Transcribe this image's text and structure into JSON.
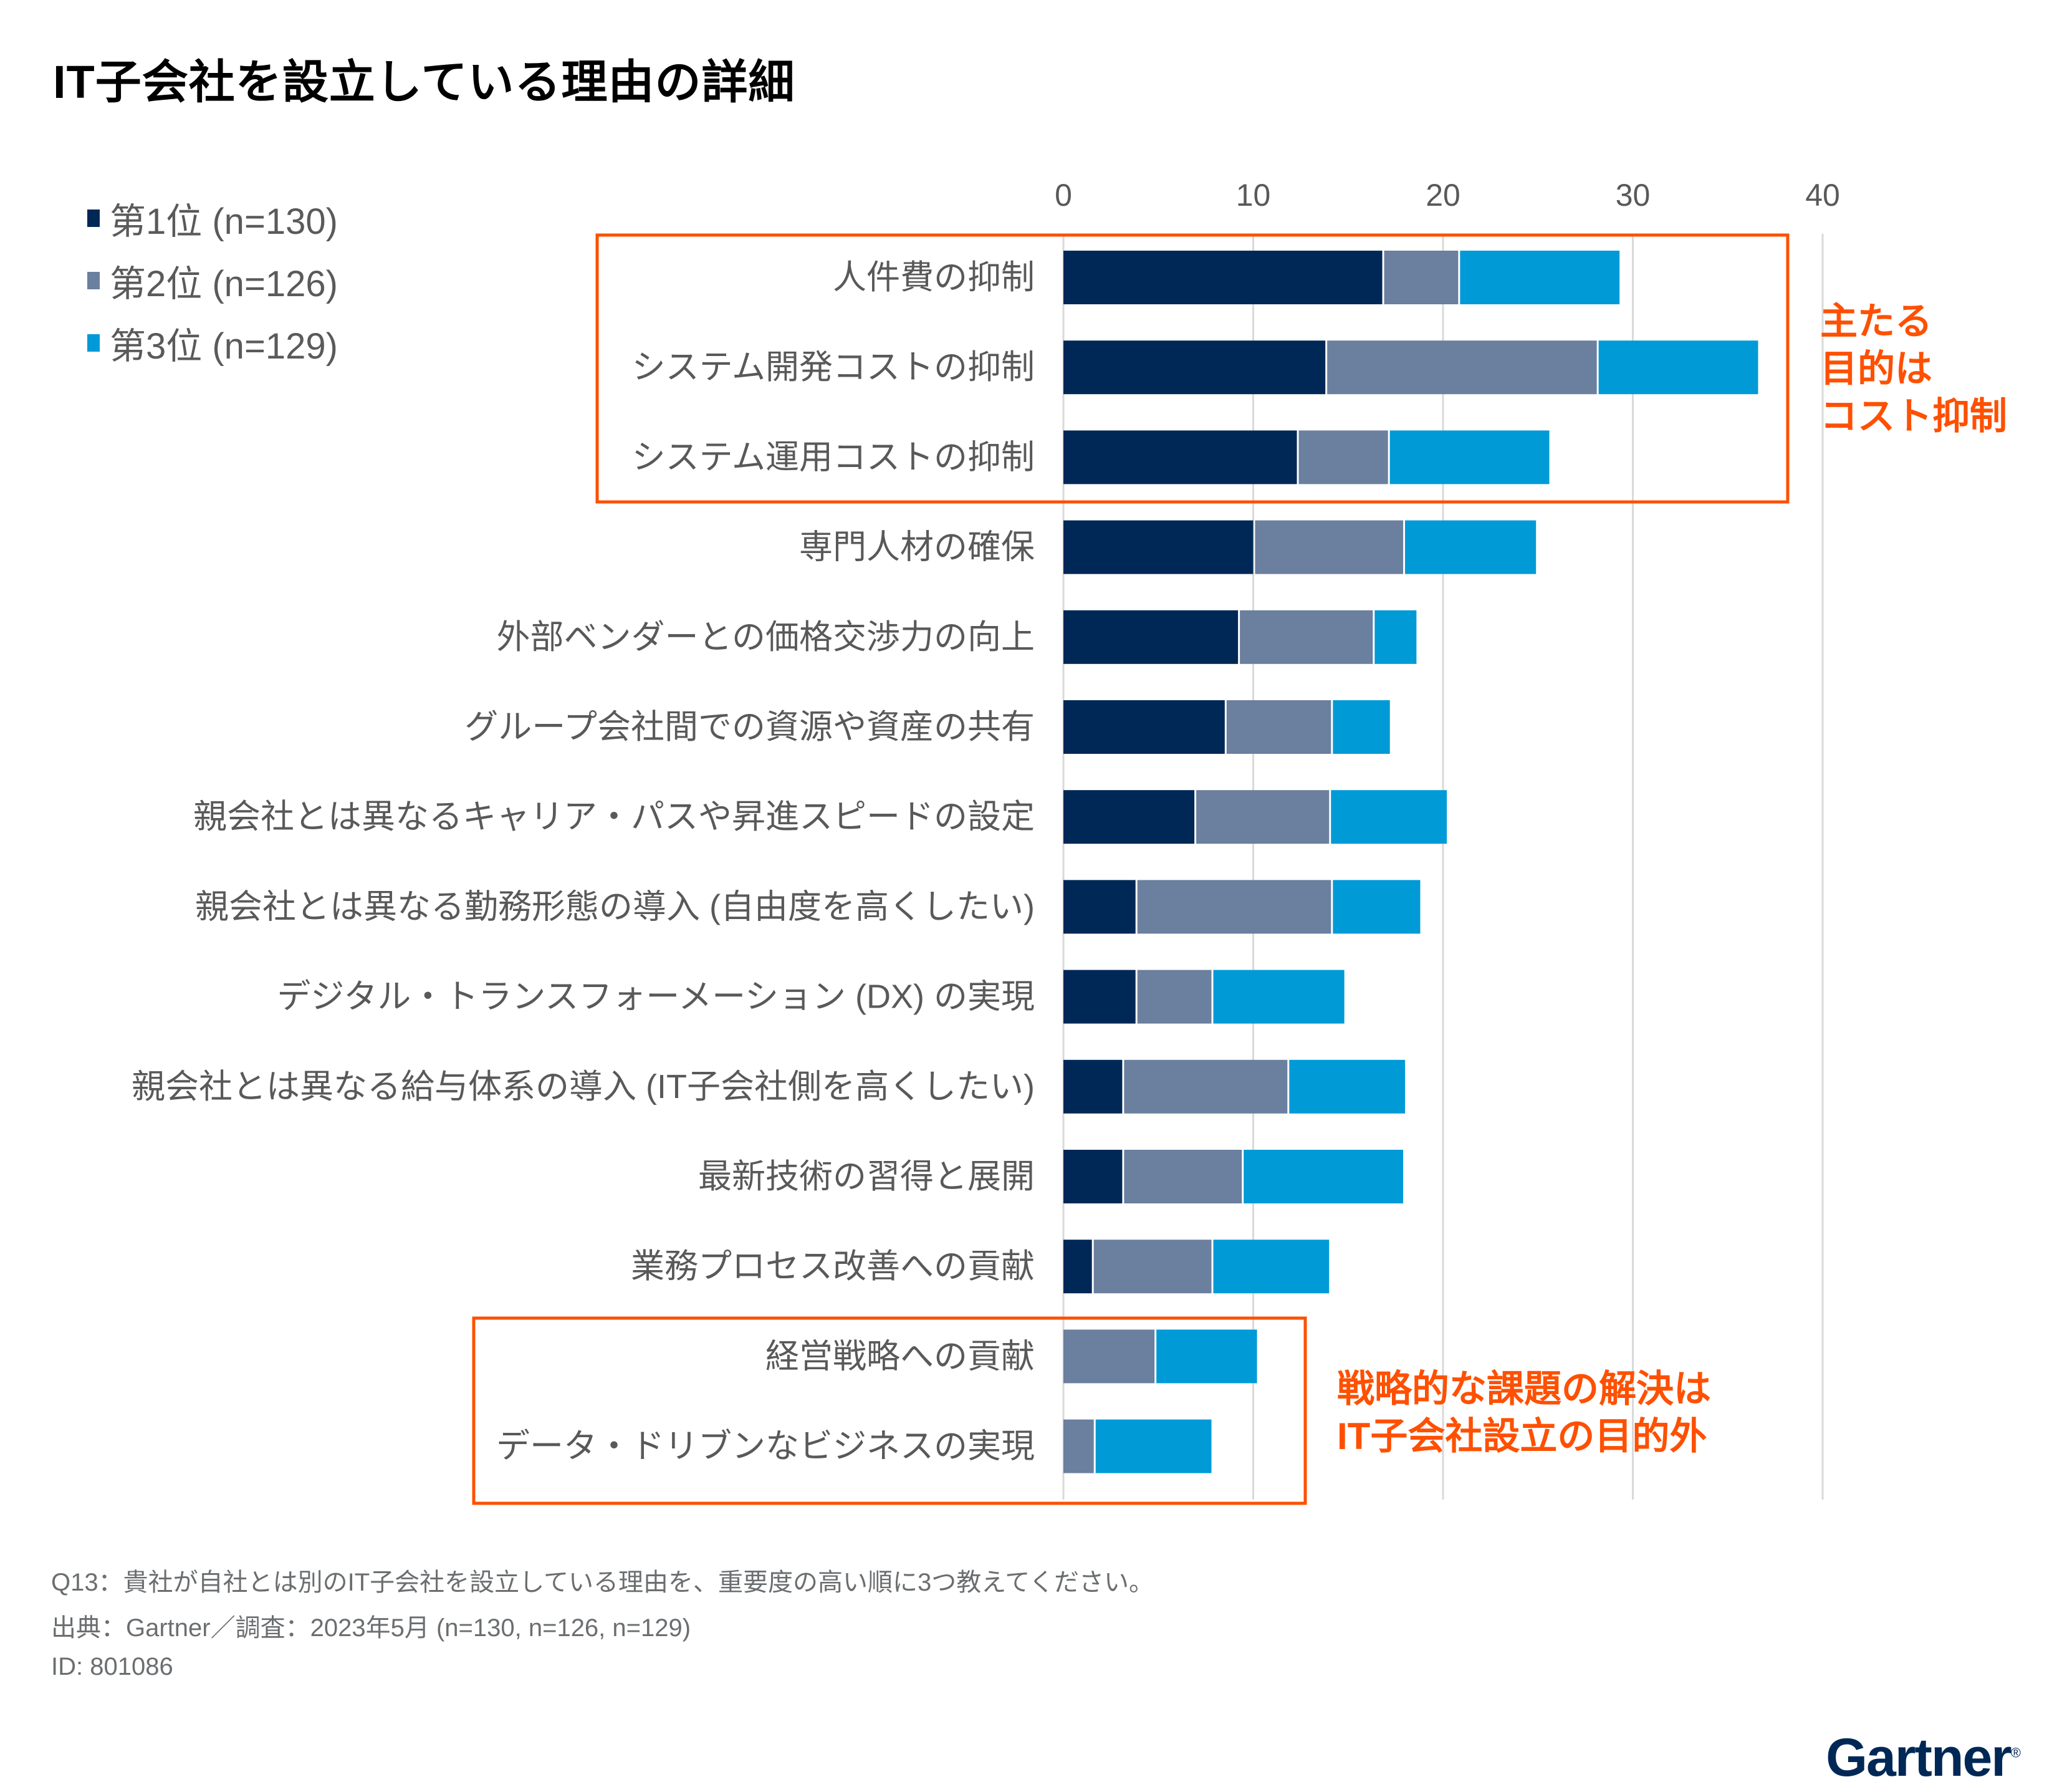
{
  "title": "IT子会社を設立している理由の詳細",
  "legend": [
    {
      "label": "第1位 (n=130)",
      "color": "#002856"
    },
    {
      "label": "第2位 (n=126)",
      "color": "#6b7f9e"
    },
    {
      "label": "第3位 (n=129)",
      "color": "#009ad7"
    }
  ],
  "callouts": {
    "cost": [
      "主たる",
      "目的は",
      "コスト抑制"
    ],
    "strategy": [
      "戦略的な課題の解決は",
      "IT子会社設立の目的外"
    ]
  },
  "footer": {
    "question": "Q13：貴社が自社とは別のIT子会社を設立している理由を、重要度の高い順に3つ教えてください。",
    "source": "出典：Gartner／調査：2023年5月 (n=130, n=126, n=129)",
    "id": "ID: 801086"
  },
  "logo": {
    "text": "Gartner",
    "mark": "®"
  },
  "colors": {
    "accent": "#fe5000",
    "grid": "#d9d9d9"
  },
  "chart_data": {
    "type": "bar",
    "orientation": "horizontal",
    "stacked": true,
    "title": "IT子会社を設立している理由の詳細",
    "xlabel": "",
    "ylabel": "",
    "xlim": [
      0,
      40
    ],
    "xticks": [
      0,
      10,
      20,
      30,
      40
    ],
    "grid": true,
    "legend_position": "top-left",
    "categories": [
      "人件費の抑制",
      "システム開発コストの抑制",
      "システム運用コストの抑制",
      "専門人材の確保",
      "外部ベンダーとの価格交渉力の向上",
      "グループ会社間での資源や資産の共有",
      "親会社とは異なるキャリア・パスや昇進スピードの設定",
      "親会社とは異なる勤務形態の導入 (自由度を高くしたい)",
      "デジタル・トランスフォーメーション (DX) の実現",
      "親会社とは異なる給与体系の導入 (IT子会社側を高くしたい)",
      "最新技術の習得と展開",
      "業務プロセス改善への貢献",
      "経営戦略への貢献",
      "データ・ドリブンなビジネスの実現"
    ],
    "series": [
      {
        "name": "第1位 (n=130)",
        "color": "#002856",
        "values": [
          16.8,
          13.8,
          12.3,
          10.0,
          9.2,
          8.5,
          6.9,
          3.8,
          3.8,
          3.1,
          3.1,
          1.5,
          0.0,
          0.0
        ]
      },
      {
        "name": "第2位 (n=126)",
        "color": "#6b7f9e",
        "values": [
          4.0,
          14.3,
          4.8,
          7.9,
          7.1,
          5.6,
          7.1,
          10.3,
          4.0,
          8.7,
          6.3,
          6.3,
          4.8,
          1.6
        ]
      },
      {
        "name": "第3位 (n=129)",
        "color": "#009ad7",
        "values": [
          8.5,
          8.5,
          8.5,
          7.0,
          2.3,
          3.1,
          6.2,
          4.7,
          7.0,
          6.2,
          8.5,
          6.2,
          5.4,
          6.2
        ]
      }
    ],
    "highlight_groups": [
      {
        "rows": [
          0,
          1,
          2
        ],
        "note": "主たる目的はコスト抑制"
      },
      {
        "rows": [
          12,
          13
        ],
        "note": "戦略的な課題の解決はIT子会社設立の目的外"
      }
    ]
  }
}
